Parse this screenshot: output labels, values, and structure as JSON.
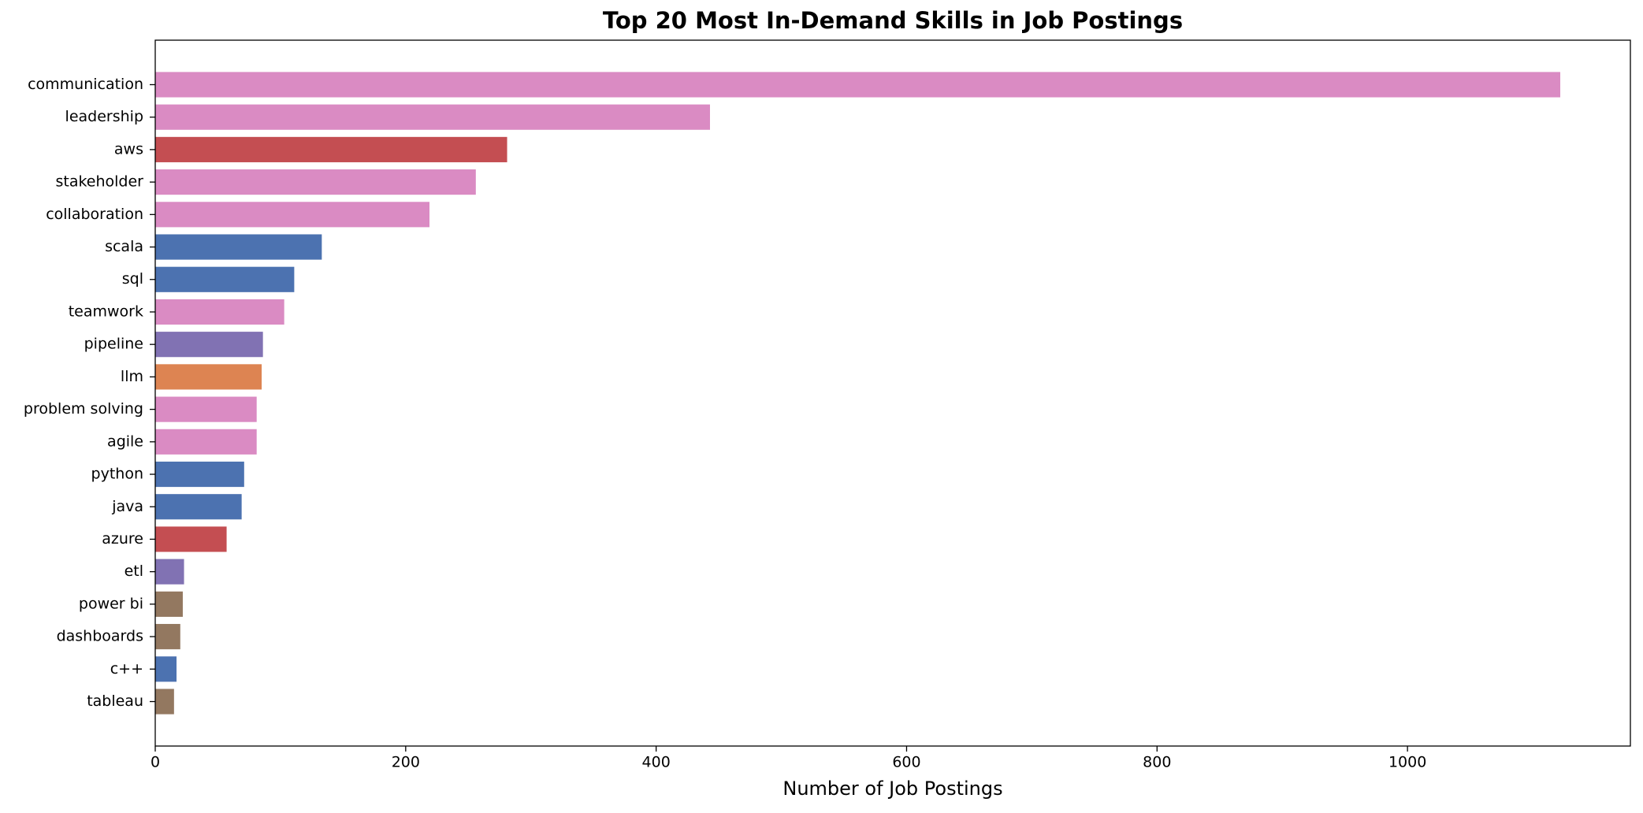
{
  "chart_data": {
    "type": "barh",
    "title": "Top 20 Most In-Demand Skills in Job Postings",
    "xlabel": "Number of Job Postings",
    "categories": [
      "communication",
      "leadership",
      "aws",
      "stakeholder",
      "collaboration",
      "scala",
      "sql",
      "teamwork",
      "pipeline",
      "llm",
      "problem solving",
      "agile",
      "python",
      "java",
      "azure",
      "etl",
      "power bi",
      "dashboards",
      "c++",
      "tableau"
    ],
    "values": [
      1122,
      443,
      281,
      256,
      219,
      133,
      111,
      103,
      86,
      85,
      81,
      81,
      71,
      69,
      57,
      23,
      22,
      20,
      17,
      15
    ],
    "colors": [
      "#da8bc3",
      "#da8bc3",
      "#c44e52",
      "#da8bc3",
      "#da8bc3",
      "#4c72b0",
      "#4c72b0",
      "#da8bc3",
      "#8172b3",
      "#dd8452",
      "#da8bc3",
      "#da8bc3",
      "#4c72b0",
      "#4c72b0",
      "#c44e52",
      "#8172b3",
      "#937860",
      "#937860",
      "#4c72b0",
      "#937860"
    ],
    "xlim": [
      0,
      1178
    ],
    "xticks": [
      0,
      200,
      400,
      600,
      800,
      1000
    ],
    "grid": false
  }
}
